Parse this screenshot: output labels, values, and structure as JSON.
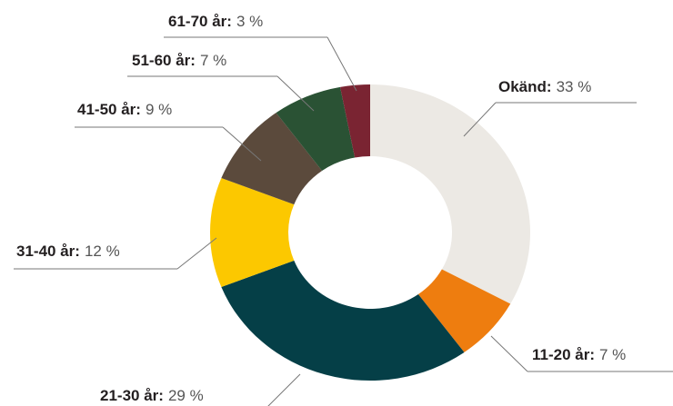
{
  "chart_data": {
    "type": "donut",
    "categories": [
      "Okänd:",
      "11-20 år:",
      "21-30 år:",
      "31-40 år:",
      "41-50 år:",
      "51-60 år:",
      "61-70 år:"
    ],
    "values": [
      33,
      7,
      29,
      12,
      9,
      7,
      3
    ],
    "value_labels": [
      "33 %",
      "7 %",
      "29 %",
      "12 %",
      "9 %",
      "7 %",
      "3 %"
    ],
    "colors": [
      "#ece9e4",
      "#ee7d0f",
      "#053f47",
      "#fcc800",
      "#5b4a3c",
      "#2a5234",
      "#7a2432"
    ]
  }
}
